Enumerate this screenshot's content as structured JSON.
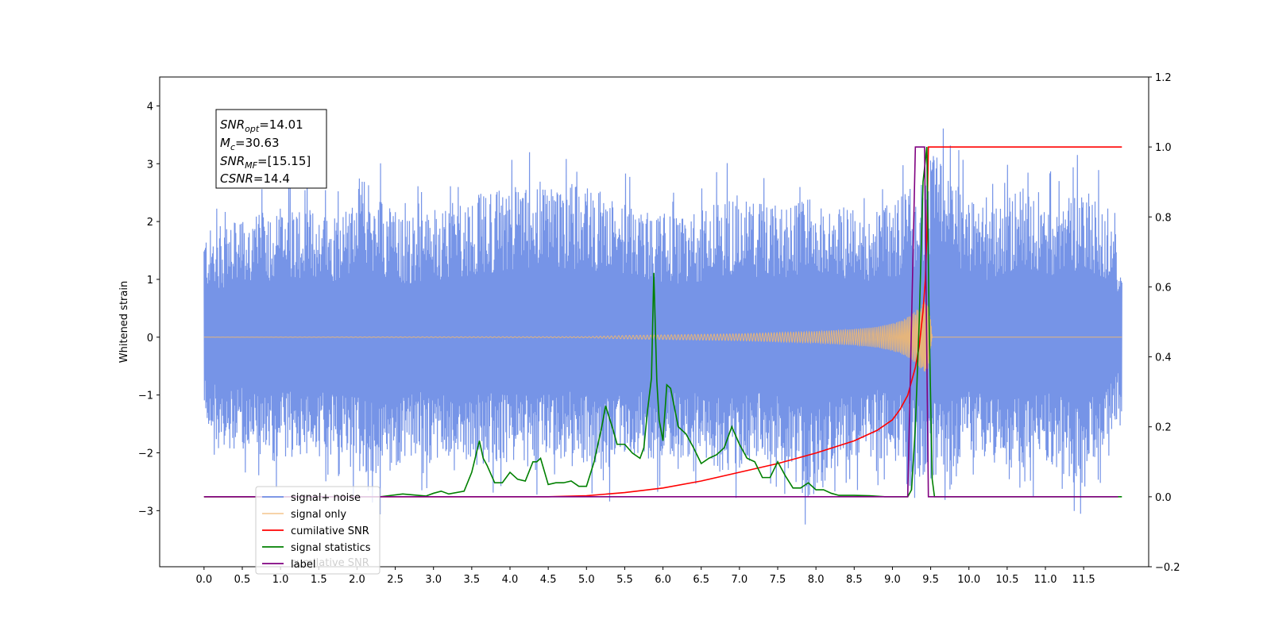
{
  "chart_data": {
    "type": "line",
    "title": "",
    "xlabel": "",
    "ylabel": "Whitened strain",
    "xlim": [
      -0.58,
      12.35
    ],
    "ylim": [
      -3.97,
      4.5
    ],
    "y2lim": [
      -0.2,
      1.2
    ],
    "x_ticks": [
      0.0,
      0.5,
      1.0,
      1.5,
      2.0,
      2.5,
      3.0,
      3.5,
      4.0,
      4.5,
      5.0,
      5.5,
      6.0,
      6.5,
      7.0,
      7.5,
      8.0,
      8.5,
      9.0,
      9.5,
      10.0,
      10.5,
      11.0,
      11.5
    ],
    "x_tick_labels": [
      "0.0",
      "0.5",
      "1.0",
      "1.5",
      "2.0",
      "2.5",
      "3.0",
      "3.5",
      "4.0",
      "4.5",
      "5.0",
      "5.5",
      "6.0",
      "6.5",
      "7.0",
      "7.5",
      "8.0",
      "8.5",
      "9.0",
      "9.5",
      "10.0",
      "10.5",
      "11.0",
      "11.5"
    ],
    "y_ticks": [
      -3,
      -2,
      -1,
      0,
      1,
      2,
      3,
      4
    ],
    "y_tick_labels": [
      "−3",
      "−2",
      "−1",
      "0",
      "1",
      "2",
      "3",
      "4"
    ],
    "y2_ticks": [
      -0.2,
      0.0,
      0.2,
      0.4,
      0.6,
      0.8,
      1.0,
      1.2
    ],
    "y2_tick_labels": [
      "−0.2",
      "0.0",
      "0.2",
      "0.4",
      "0.6",
      "0.8",
      "1.0",
      "1.2"
    ],
    "grid": false,
    "legend_position": "lower-left",
    "colors": {
      "noise": "#6f8ee6",
      "signal": "#f2b870",
      "cumulative": "#ff0000",
      "statistics": "#008000",
      "label": "#800080"
    },
    "info_box": {
      "snr_opt_var": "SNR",
      "snr_opt_sub": "opt",
      "snr_opt_value": "=14.01",
      "mc_var": "M",
      "mc_sub": "c",
      "mc_value": "=30.63",
      "snr_mf_var": "SNR",
      "snr_mf_sub": "MF",
      "snr_mf_value": "=[15.15]",
      "csnr_var": "CSNR",
      "csnr_value": "=14.4"
    },
    "series": [
      {
        "name": "signal+ noise",
        "axis": "left",
        "style": "noise",
        "x_start": 0.0,
        "x_end": 12.0,
        "envelope_upper": [
          [
            0.0,
            2.3
          ],
          [
            0.6,
            2.6
          ],
          [
            1.1,
            2.9
          ],
          [
            1.8,
            2.7
          ],
          [
            2.05,
            3.5
          ],
          [
            2.6,
            2.6
          ],
          [
            3.2,
            2.9
          ],
          [
            3.8,
            3.2
          ],
          [
            4.45,
            3.4
          ],
          [
            5.05,
            3.3
          ],
          [
            5.6,
            2.8
          ],
          [
            6.3,
            2.6
          ],
          [
            6.9,
            3.1
          ],
          [
            7.6,
            2.8
          ],
          [
            8.1,
            3.1
          ],
          [
            8.7,
            2.6
          ],
          [
            9.3,
            3.3
          ],
          [
            9.5,
            4.1
          ],
          [
            9.9,
            3.3
          ],
          [
            10.3,
            2.7
          ],
          [
            10.65,
            3.3
          ],
          [
            11.0,
            2.8
          ],
          [
            11.55,
            3.35
          ],
          [
            12.0,
            2.0
          ]
        ],
        "envelope_lower": [
          [
            0.0,
            -1.7
          ],
          [
            0.25,
            -2.8
          ],
          [
            0.5,
            -2.4
          ],
          [
            0.8,
            -2.9
          ],
          [
            1.3,
            -2.5
          ],
          [
            1.8,
            -2.8
          ],
          [
            2.3,
            -3.1
          ],
          [
            2.7,
            -2.6
          ],
          [
            3.3,
            -2.9
          ],
          [
            3.9,
            -2.7
          ],
          [
            4.4,
            -2.9
          ],
          [
            4.8,
            -2.5
          ],
          [
            5.2,
            -3.2
          ],
          [
            5.5,
            -2.5
          ],
          [
            5.9,
            -2.7
          ],
          [
            6.3,
            -2.6
          ],
          [
            6.8,
            -3.0
          ],
          [
            7.3,
            -2.6
          ],
          [
            7.6,
            -2.8
          ],
          [
            7.9,
            -3.6
          ],
          [
            8.4,
            -2.7
          ],
          [
            8.8,
            -2.6
          ],
          [
            9.2,
            -2.9
          ],
          [
            9.5,
            -3.3
          ],
          [
            10.0,
            -2.6
          ],
          [
            10.5,
            -2.9
          ],
          [
            11.0,
            -2.7
          ],
          [
            11.5,
            -3.3
          ],
          [
            12.0,
            -1.6
          ]
        ]
      },
      {
        "name": "signal only",
        "axis": "left",
        "style": "signal",
        "x": [
          0.0,
          5.0,
          5.5,
          6.0,
          6.5,
          7.0,
          7.5,
          8.0,
          8.5,
          8.8,
          9.0,
          9.1,
          9.2,
          9.3,
          9.4,
          9.45,
          9.5,
          9.52,
          12.0
        ],
        "amplitude": [
          0.0,
          0.01,
          0.03,
          0.04,
          0.05,
          0.06,
          0.08,
          0.1,
          0.14,
          0.18,
          0.24,
          0.28,
          0.35,
          0.45,
          0.58,
          0.65,
          0.3,
          0.0,
          0.0
        ]
      },
      {
        "name": "cumilative SNR",
        "axis": "right",
        "style": "cumulative",
        "x": [
          0.0,
          4.5,
          5.0,
          5.5,
          6.0,
          6.5,
          7.0,
          7.5,
          8.0,
          8.5,
          8.8,
          9.0,
          9.1,
          9.2,
          9.3,
          9.35,
          9.4,
          9.43,
          9.45,
          9.47,
          9.5,
          12.0
        ],
        "y": [
          0.0,
          0.0,
          0.003,
          0.012,
          0.025,
          0.045,
          0.07,
          0.095,
          0.125,
          0.16,
          0.19,
          0.22,
          0.25,
          0.29,
          0.37,
          0.43,
          0.53,
          0.62,
          0.75,
          1.0,
          1.0,
          1.0
        ]
      },
      {
        "name": "signal statistics",
        "axis": "right",
        "style": "statistics",
        "x": [
          0.0,
          2.3,
          2.6,
          2.9,
          3.0,
          3.1,
          3.2,
          3.4,
          3.5,
          3.6,
          3.65,
          3.7,
          3.8,
          3.9,
          4.0,
          4.1,
          4.2,
          4.3,
          4.35,
          4.4,
          4.5,
          4.6,
          4.7,
          4.8,
          4.9,
          5.0,
          5.1,
          5.2,
          5.25,
          5.35,
          5.4,
          5.5,
          5.6,
          5.7,
          5.75,
          5.8,
          5.85,
          5.88,
          5.92,
          5.95,
          6.0,
          6.05,
          6.1,
          6.2,
          6.3,
          6.4,
          6.5,
          6.6,
          6.7,
          6.8,
          6.9,
          7.0,
          7.1,
          7.2,
          7.3,
          7.4,
          7.5,
          7.6,
          7.7,
          7.8,
          7.9,
          8.0,
          8.1,
          8.2,
          8.3,
          8.5,
          8.7,
          8.9,
          9.1,
          9.2,
          9.25,
          9.3,
          9.35,
          9.4,
          9.45,
          9.48,
          9.52,
          9.55,
          12.0
        ],
        "y": [
          0.0,
          0.0,
          0.008,
          0.002,
          0.01,
          0.016,
          0.008,
          0.016,
          0.07,
          0.16,
          0.11,
          0.09,
          0.04,
          0.04,
          0.07,
          0.05,
          0.045,
          0.1,
          0.1,
          0.11,
          0.035,
          0.04,
          0.04,
          0.045,
          0.03,
          0.03,
          0.1,
          0.2,
          0.26,
          0.19,
          0.15,
          0.15,
          0.125,
          0.11,
          0.14,
          0.25,
          0.34,
          0.64,
          0.33,
          0.22,
          0.16,
          0.32,
          0.31,
          0.2,
          0.18,
          0.14,
          0.095,
          0.11,
          0.12,
          0.14,
          0.2,
          0.15,
          0.11,
          0.1,
          0.055,
          0.055,
          0.1,
          0.06,
          0.025,
          0.025,
          0.04,
          0.02,
          0.02,
          0.01,
          0.004,
          0.004,
          0.003,
          0.0,
          0.0,
          0.0,
          0.02,
          0.2,
          0.5,
          0.9,
          1.0,
          0.5,
          0.05,
          0.0,
          0.0
        ]
      },
      {
        "name": "label",
        "axis": "right",
        "style": "label",
        "x": [
          0.0,
          9.2,
          9.3,
          9.42,
          9.47,
          11.95
        ],
        "y": [
          0.0,
          0.0,
          1.0,
          1.0,
          0.0,
          0.0
        ]
      }
    ],
    "legend": [
      {
        "label": "signal+ noise",
        "style": "noise"
      },
      {
        "label": "signal only",
        "style": "signal"
      },
      {
        "label": "cumilative SNR",
        "style": "cumulative"
      },
      {
        "label": "signal statistics",
        "style": "statistics"
      },
      {
        "label": "label",
        "style": "label"
      }
    ],
    "legend_ghost_text": "cumilative SNR"
  }
}
